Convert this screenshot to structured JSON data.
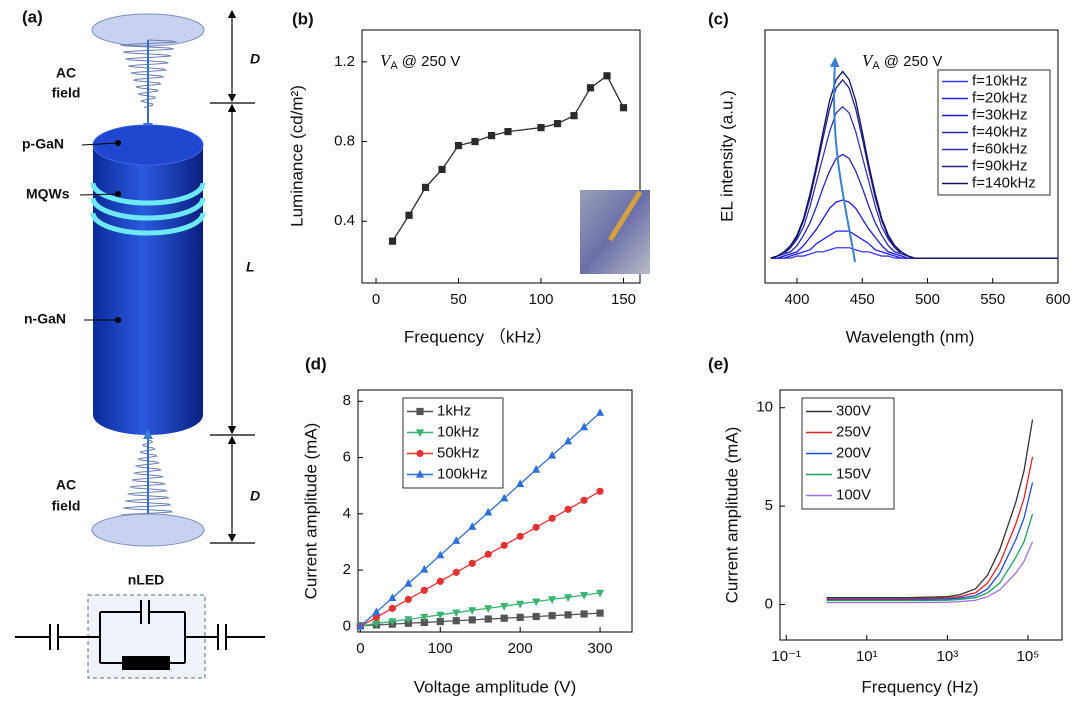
{
  "diagram": {
    "panel_label": "(a)",
    "top_field": [
      "AC",
      "field"
    ],
    "top_gap": "D",
    "p_layer": "p-GaN",
    "mqw_layer": "MQWs",
    "length": "L",
    "n_layer": "n-GaN",
    "bottom_field": [
      "AC",
      "field"
    ],
    "bottom_gap": "D",
    "circuit_label": "nLED"
  },
  "chart_data": [
    {
      "type": "line",
      "panel_label": "(b)",
      "annotation_symbol": "V",
      "annotation_subscript": "A",
      "annotation": "@ 250 V",
      "xlabel": "Frequency （kHz）",
      "ylabel": "Luminance (cd/m²)",
      "x": [
        10,
        20,
        30,
        40,
        50,
        60,
        70,
        80,
        100,
        110,
        120,
        130,
        140,
        150
      ],
      "series": [
        {
          "color": "#2b2b2b",
          "marker": "square",
          "values": [
            0.3,
            0.43,
            0.57,
            0.66,
            0.78,
            0.8,
            0.83,
            0.85,
            0.87,
            0.89,
            0.93,
            1.07,
            1.13,
            0.97
          ]
        }
      ],
      "xlim": [
        -8.5,
        160
      ],
      "ylim": [
        0.09,
        1.36
      ],
      "xticks": [
        0,
        50,
        100,
        150
      ],
      "yticks": [
        0.4,
        0.8,
        1.2
      ]
    },
    {
      "type": "line",
      "panel_label": "(c)",
      "annotation_symbol": "V",
      "annotation_subscript": "A",
      "annotation": "@ 250 V",
      "xlabel": "Wavelength (nm)",
      "ylabel": "EL intensity (a.u.)",
      "legend": "upper-right",
      "x": [
        380,
        385,
        390,
        395,
        400,
        405,
        410,
        415,
        420,
        425,
        430,
        435,
        440,
        445,
        450,
        455,
        460,
        465,
        470,
        475,
        480,
        485,
        490,
        495,
        500,
        525,
        550,
        575,
        600
      ],
      "series": [
        {
          "name": "f=10kHz",
          "color": "#3a3aff",
          "values": [
            0.12,
            0.12,
            0.12,
            0.12,
            0.13,
            0.13,
            0.14,
            0.15,
            0.15,
            0.16,
            0.17,
            0.17,
            0.17,
            0.16,
            0.15,
            0.15,
            0.14,
            0.13,
            0.13,
            0.12,
            0.12,
            0.12,
            0.12,
            0.12,
            0.12,
            0.12,
            0.12,
            0.12,
            0.12
          ]
        },
        {
          "name": "f=20kHz",
          "color": "#2222e6",
          "values": [
            0.12,
            0.12,
            0.12,
            0.13,
            0.14,
            0.15,
            0.16,
            0.19,
            0.21,
            0.23,
            0.25,
            0.25,
            0.25,
            0.23,
            0.21,
            0.19,
            0.16,
            0.15,
            0.14,
            0.13,
            0.12,
            0.12,
            0.12,
            0.12,
            0.12,
            0.12,
            0.12,
            0.12,
            0.12
          ]
        },
        {
          "name": "f=30kHz",
          "color": "#1a1acc",
          "values": [
            0.12,
            0.12,
            0.13,
            0.14,
            0.15,
            0.18,
            0.22,
            0.26,
            0.31,
            0.36,
            0.39,
            0.4,
            0.39,
            0.36,
            0.31,
            0.26,
            0.22,
            0.18,
            0.15,
            0.14,
            0.13,
            0.12,
            0.12,
            0.12,
            0.12,
            0.12,
            0.12,
            0.12,
            0.12
          ]
        },
        {
          "name": "f=40kHz",
          "color": "#2828b4",
          "values": [
            0.12,
            0.13,
            0.14,
            0.15,
            0.18,
            0.23,
            0.29,
            0.37,
            0.46,
            0.54,
            0.6,
            0.62,
            0.6,
            0.54,
            0.46,
            0.37,
            0.29,
            0.23,
            0.18,
            0.15,
            0.14,
            0.13,
            0.12,
            0.12,
            0.12,
            0.12,
            0.12,
            0.12,
            0.12
          ]
        },
        {
          "name": "f=60kHz",
          "color": "#3434a8",
          "values": [
            0.12,
            0.13,
            0.14,
            0.17,
            0.21,
            0.27,
            0.37,
            0.49,
            0.61,
            0.73,
            0.82,
            0.85,
            0.82,
            0.73,
            0.61,
            0.49,
            0.37,
            0.27,
            0.21,
            0.17,
            0.14,
            0.13,
            0.12,
            0.12,
            0.12,
            0.12,
            0.12,
            0.12,
            0.12
          ]
        },
        {
          "name": "f=90kHz",
          "color": "#20208c",
          "values": [
            0.12,
            0.13,
            0.15,
            0.17,
            0.22,
            0.3,
            0.41,
            0.55,
            0.7,
            0.84,
            0.94,
            0.98,
            0.94,
            0.84,
            0.7,
            0.55,
            0.41,
            0.3,
            0.22,
            0.17,
            0.15,
            0.13,
            0.12,
            0.12,
            0.12,
            0.12,
            0.12,
            0.12,
            0.12
          ]
        },
        {
          "name": "f=140kHz",
          "color": "#121260",
          "values": [
            0.12,
            0.13,
            0.15,
            0.18,
            0.23,
            0.31,
            0.43,
            0.57,
            0.73,
            0.88,
            0.98,
            1.02,
            0.98,
            0.88,
            0.73,
            0.57,
            0.43,
            0.31,
            0.23,
            0.18,
            0.15,
            0.13,
            0.12,
            0.12,
            0.12,
            0.12,
            0.12,
            0.12,
            0.12
          ]
        }
      ],
      "xlim": [
        375.5,
        600
      ],
      "ylim": [
        0,
        1.22
      ],
      "xticks": [
        400,
        450,
        500,
        550,
        600
      ]
    },
    {
      "type": "line",
      "panel_label": "(d)",
      "xlabel": "Voltage amplitude (V)",
      "ylabel": "Current amplitude (mA)",
      "legend": "upper-left",
      "x": [
        0,
        20,
        40,
        60,
        80,
        100,
        120,
        140,
        160,
        180,
        200,
        220,
        240,
        260,
        280,
        300
      ],
      "series": [
        {
          "name": "1kHz",
          "color": "#555555",
          "marker": "square",
          "values": [
            0.02,
            0.05,
            0.08,
            0.11,
            0.14,
            0.17,
            0.2,
            0.23,
            0.26,
            0.29,
            0.32,
            0.35,
            0.38,
            0.41,
            0.44,
            0.47
          ]
        },
        {
          "name": "10kHz",
          "color": "#3cb371",
          "marker": "triangle-down",
          "values": [
            0.02,
            0.1,
            0.18,
            0.25,
            0.33,
            0.41,
            0.49,
            0.57,
            0.64,
            0.72,
            0.8,
            0.88,
            0.96,
            1.03,
            1.11,
            1.19
          ]
        },
        {
          "name": "50kHz",
          "color": "#e53333",
          "marker": "circle",
          "values": [
            0,
            0.32,
            0.64,
            0.96,
            1.28,
            1.6,
            1.92,
            2.24,
            2.56,
            2.88,
            3.2,
            3.52,
            3.84,
            4.16,
            4.48,
            4.8
          ]
        },
        {
          "name": "100kHz",
          "color": "#2f6fd8",
          "marker": "triangle-up",
          "values": [
            0,
            0.51,
            1.01,
            1.52,
            2.02,
            2.53,
            3.04,
            3.54,
            4.05,
            4.55,
            5.06,
            5.57,
            6.07,
            6.58,
            7.08,
            7.59
          ]
        }
      ],
      "xlim": [
        -3,
        340
      ],
      "ylim": [
        -0.2,
        8.4
      ],
      "xticks": [
        0,
        100,
        200,
        300
      ],
      "yticks": [
        0,
        2,
        4,
        6,
        8
      ]
    },
    {
      "type": "line",
      "panel_label": "(e)",
      "xlabel": "Frequency (Hz)",
      "ylabel": "Current amplitude (mA)",
      "legend": "upper-left",
      "xscale": "log",
      "x": [
        1,
        10,
        100,
        1000,
        2000,
        5000,
        10000,
        20000,
        50000,
        80000,
        130000
      ],
      "series": [
        {
          "name": "300V",
          "color": "#333333",
          "values": [
            0.35,
            0.35,
            0.35,
            0.4,
            0.5,
            0.8,
            1.5,
            2.8,
            5.2,
            6.8,
            9.4
          ]
        },
        {
          "name": "250V",
          "color": "#e02424",
          "values": [
            0.3,
            0.3,
            0.3,
            0.33,
            0.4,
            0.6,
            1.1,
            2.1,
            4.1,
            5.4,
            7.5
          ]
        },
        {
          "name": "200V",
          "color": "#1f4fd8",
          "values": [
            0.25,
            0.25,
            0.25,
            0.28,
            0.33,
            0.45,
            0.8,
            1.6,
            3.3,
            4.4,
            6.2
          ]
        },
        {
          "name": "150V",
          "color": "#20a060",
          "values": [
            0.2,
            0.2,
            0.2,
            0.22,
            0.26,
            0.35,
            0.6,
            1.1,
            2.4,
            3.2,
            4.6
          ]
        },
        {
          "name": "100V",
          "color": "#a070e0",
          "values": [
            0.1,
            0.1,
            0.1,
            0.12,
            0.15,
            0.22,
            0.4,
            0.75,
            1.6,
            2.2,
            3.2
          ]
        }
      ],
      "xlim": [
        0.07,
        700000
      ],
      "ylim": [
        -1.8,
        10.9
      ],
      "xticks": [
        {
          "value": 0.1,
          "label": "10⁻¹"
        },
        {
          "value": 10,
          "label": "10¹"
        },
        {
          "value": 1000,
          "label": "10³"
        },
        {
          "value": 100000,
          "label": "10⁵"
        }
      ],
      "yticks": [
        0,
        5,
        10
      ]
    }
  ]
}
